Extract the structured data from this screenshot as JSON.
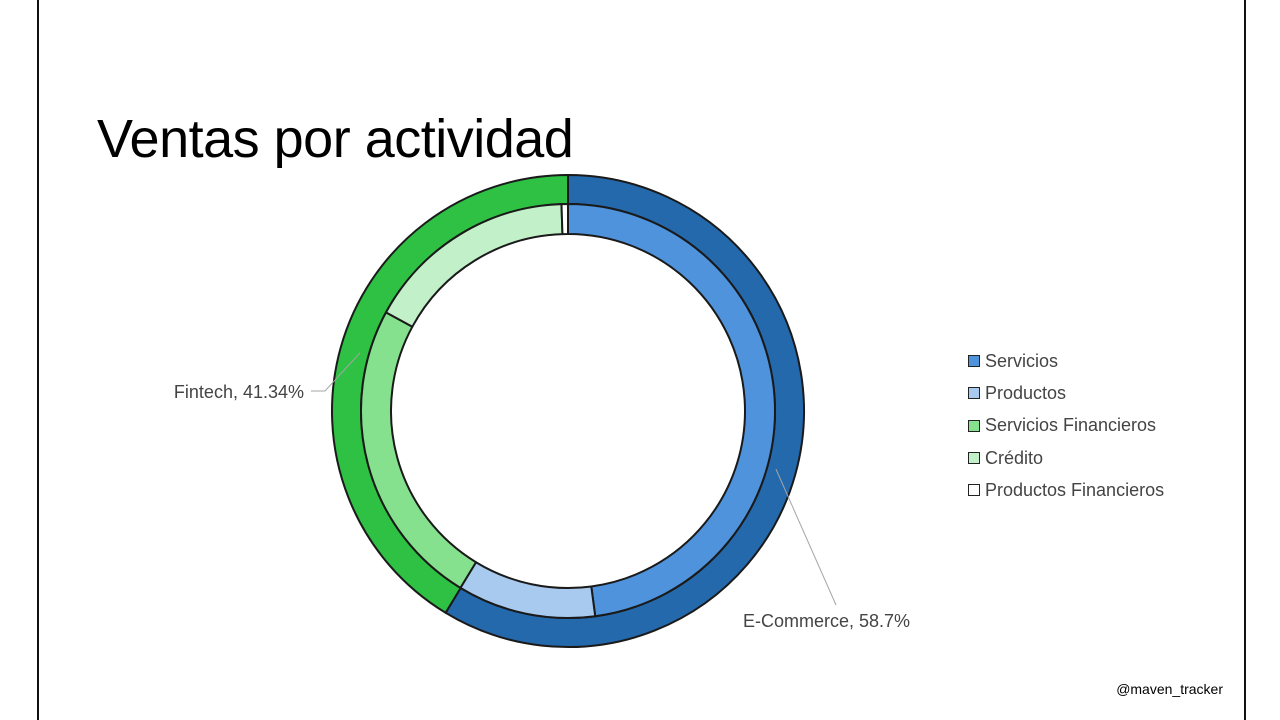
{
  "slide": {
    "title": "Ventas por actividad",
    "watermark": "@maven_tracker"
  },
  "chart_data": {
    "type": "doughnut",
    "title": "Ventas por actividad",
    "rings": [
      {
        "level": "outer",
        "series": [
          {
            "name": "E-Commerce",
            "value": 58.7,
            "color": "#2569ad"
          },
          {
            "name": "Fintech",
            "value": 41.34,
            "color": "#2ec144"
          }
        ],
        "data_labels": [
          "E-Commerce, 58.7%",
          "Fintech, 41.34%"
        ]
      },
      {
        "level": "inner",
        "series": [
          {
            "name": "Servicios",
            "value": 47.9,
            "color": "#4f93dc"
          },
          {
            "name": "Productos",
            "value": 10.8,
            "color": "#a7caee"
          },
          {
            "name": "Servicios Financieros",
            "value": 24.2,
            "color": "#85e18e"
          },
          {
            "name": "Crédito",
            "value": 16.6,
            "color": "#c2f0c8"
          },
          {
            "name": "Productos Financieros",
            "value": 0.5,
            "color": "#ffffff"
          }
        ]
      }
    ],
    "legend": {
      "placement": "right",
      "entries": [
        "Servicios",
        "Productos",
        "Servicios Financieros",
        "Crédito",
        "Productos Financieros"
      ]
    }
  }
}
